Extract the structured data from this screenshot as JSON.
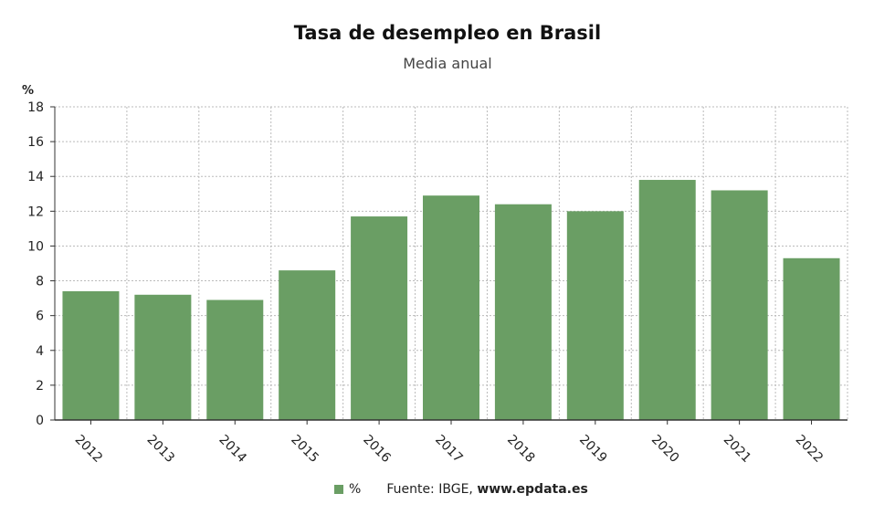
{
  "chart_data": {
    "type": "bar",
    "title": "Tasa de desempleo en Brasil",
    "subtitle": "Media anual",
    "ylabel": "%",
    "categories": [
      "2012",
      "2013",
      "2014",
      "2015",
      "2016",
      "2017",
      "2018",
      "2019",
      "2020",
      "2021",
      "2022"
    ],
    "series": [
      {
        "name": "%",
        "values": [
          7.4,
          7.2,
          6.9,
          8.6,
          11.7,
          12.9,
          12.4,
          12.0,
          13.8,
          13.2,
          9.3
        ]
      }
    ],
    "ylim": [
      0,
      18
    ],
    "yticks": [
      0,
      2,
      4,
      6,
      8,
      10,
      12,
      14,
      16,
      18
    ],
    "grid": true,
    "legend_position": "bottom",
    "bar_color": "#6a9e64"
  },
  "footer": {
    "source_prefix": "Fuente: IBGE, ",
    "source_site": "www.epdata.es"
  }
}
